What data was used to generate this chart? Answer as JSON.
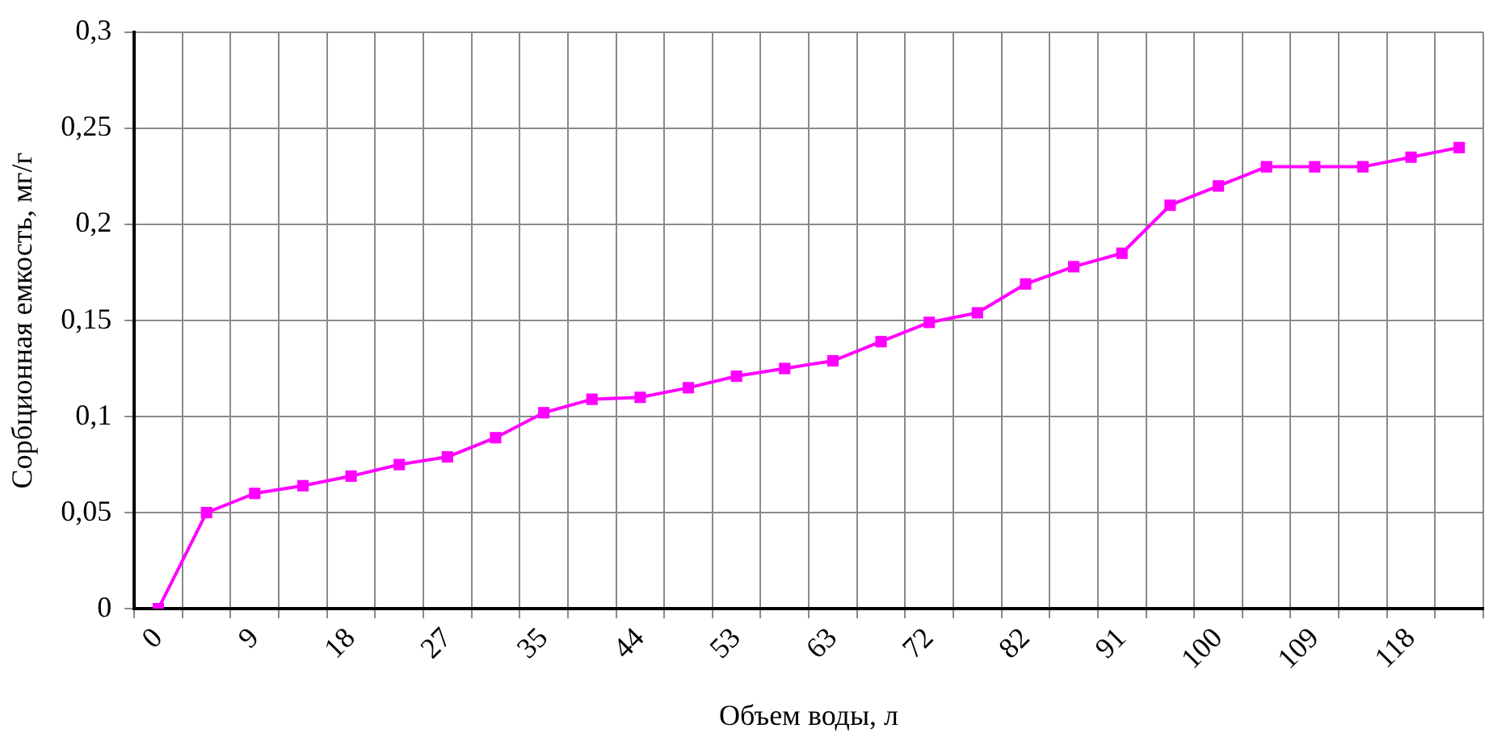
{
  "chart_data": {
    "type": "line",
    "xlabel": "Объем воды, л",
    "ylabel": "Сорбционная емкость, мг/г",
    "categories": [
      "0",
      null,
      "9",
      null,
      "18",
      null,
      "27",
      null,
      "35",
      null,
      "44",
      null,
      "53",
      null,
      "63",
      null,
      "72",
      null,
      "82",
      null,
      "91",
      null,
      "100",
      null,
      "109",
      null,
      "118",
      null
    ],
    "series": [
      {
        "color": "#ff00ff",
        "values": [
          0,
          0.05,
          0.06,
          0.064,
          0.069,
          0.075,
          0.079,
          0.089,
          0.102,
          0.109,
          0.11,
          0.115,
          0.121,
          0.125,
          0.129,
          0.139,
          0.149,
          0.154,
          0.169,
          0.178,
          0.185,
          0.21,
          0.22,
          0.23,
          0.23,
          0.23,
          0.235,
          0.24
        ]
      }
    ],
    "ylim": [
      0,
      0.3
    ],
    "yticks": [
      0,
      {
        "value": 0.05,
        "label": "0,05"
      },
      {
        "value": 0.1,
        "label": "0,1"
      },
      {
        "value": 0.15,
        "label": "0,15"
      },
      {
        "value": 0.2,
        "label": "0,2"
      },
      {
        "value": 0.25,
        "label": "0,25"
      },
      {
        "value": 0.3,
        "label": "0,3"
      }
    ],
    "grid": true,
    "legend": false,
    "marker": "square",
    "line_style": "solid"
  }
}
